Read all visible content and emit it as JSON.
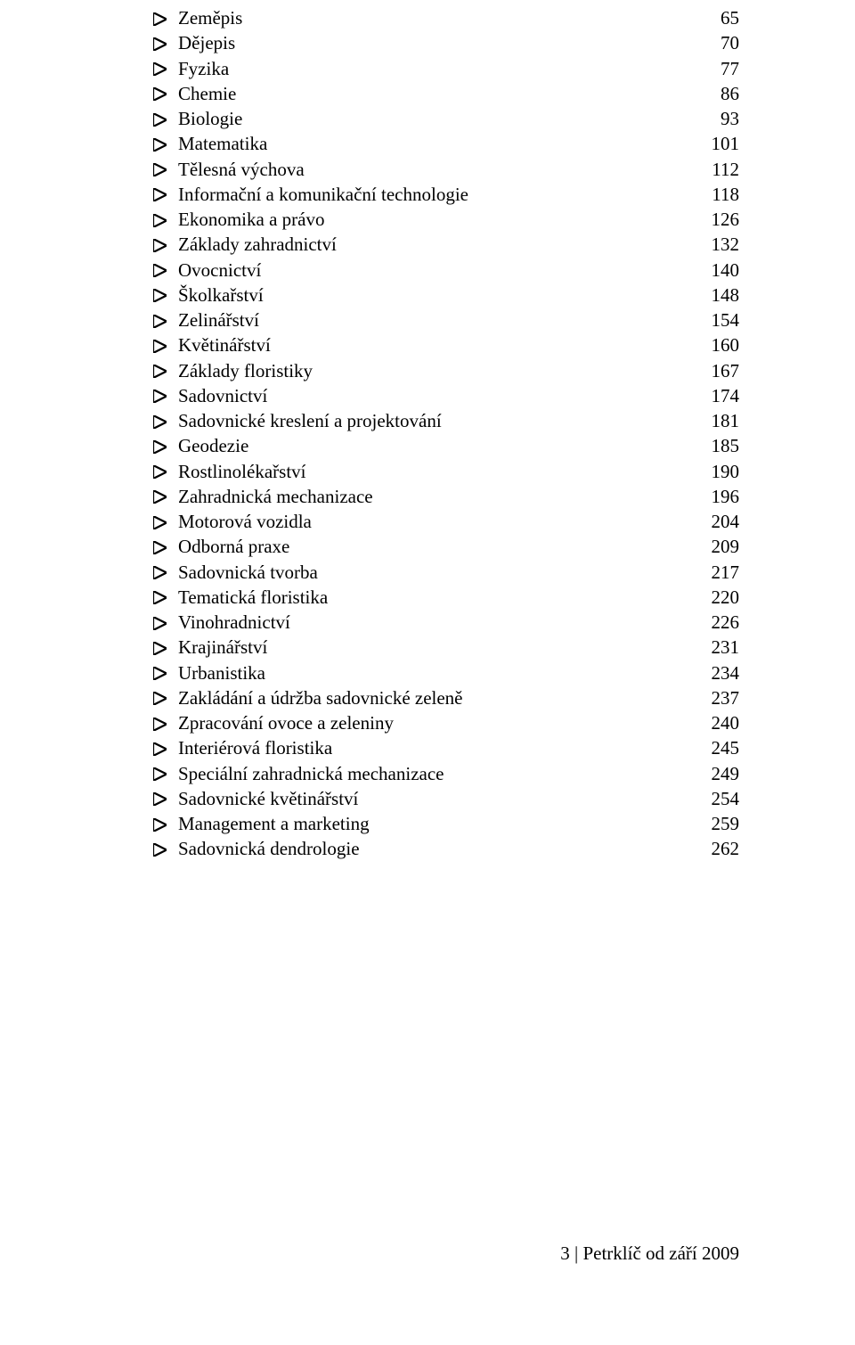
{
  "bullet_color": "#000000",
  "toc": [
    {
      "label": "Zeměpis",
      "page": "65"
    },
    {
      "label": "Dějepis",
      "page": "70"
    },
    {
      "label": "Fyzika",
      "page": "77"
    },
    {
      "label": "Chemie",
      "page": "86"
    },
    {
      "label": "Biologie",
      "page": "93"
    },
    {
      "label": "Matematika",
      "page": "101"
    },
    {
      "label": "Tělesná výchova",
      "page": "112"
    },
    {
      "label": "Informační a komunikační technologie",
      "page": "118"
    },
    {
      "label": "Ekonomika a právo",
      "page": "126"
    },
    {
      "label": "Základy zahradnictví",
      "page": "132"
    },
    {
      "label": "Ovocnictví",
      "page": "140"
    },
    {
      "label": "Školkařství",
      "page": "148"
    },
    {
      "label": "Zelinářství",
      "page": "154"
    },
    {
      "label": "Květinářství",
      "page": "160"
    },
    {
      "label": "Základy floristiky",
      "page": "167"
    },
    {
      "label": "Sadovnictví",
      "page": "174"
    },
    {
      "label": "Sadovnické kreslení a projektování",
      "page": "181"
    },
    {
      "label": "Geodezie",
      "page": "185"
    },
    {
      "label": "Rostlinolékařství",
      "page": "190"
    },
    {
      "label": "Zahradnická mechanizace",
      "page": "196"
    },
    {
      "label": "Motorová vozidla",
      "page": "204"
    },
    {
      "label": "Odborná praxe",
      "page": "209"
    },
    {
      "label": "Sadovnická tvorba",
      "page": "217"
    },
    {
      "label": "Tematická floristika",
      "page": "220"
    },
    {
      "label": "Vinohradnictví",
      "page": "226"
    },
    {
      "label": "Krajinářství",
      "page": "231"
    },
    {
      "label": "Urbanistika",
      "page": "234"
    },
    {
      "label": "Zakládání a údržba sadovnické zeleně",
      "page": "237"
    },
    {
      "label": "Zpracování ovoce a zeleniny",
      "page": "240"
    },
    {
      "label": "Interiérová floristika",
      "page": "245"
    },
    {
      "label": "Speciální zahradnická mechanizace",
      "page": "249"
    },
    {
      "label": "Sadovnické květinářství",
      "page": "254"
    },
    {
      "label": "Management a marketing",
      "page": "259"
    },
    {
      "label": "Sadovnická dendrologie",
      "page": "262"
    }
  ],
  "footer": "3 | Petrklíč od září 2009"
}
